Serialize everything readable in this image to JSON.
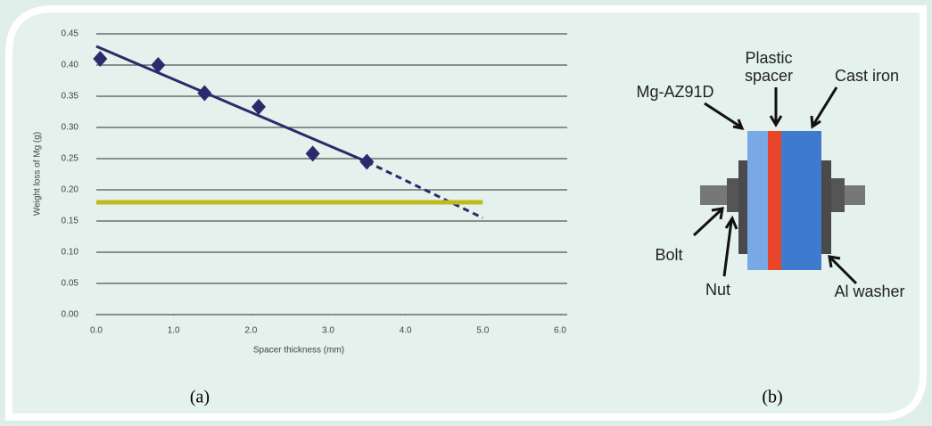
{
  "chart_data": {
    "type": "scatter",
    "xlabel": "Spacer thickness (mm)",
    "ylabel": "Weight loss of Mg (g)",
    "xlim": [
      0,
      6
    ],
    "ylim": [
      0,
      0.45
    ],
    "xticks": [
      {
        "value": 0,
        "label": "0.0"
      },
      {
        "value": 1,
        "label": "1.0"
      },
      {
        "value": 2,
        "label": "2.0"
      },
      {
        "value": 3,
        "label": "3.0"
      },
      {
        "value": 4,
        "label": "4.0"
      },
      {
        "value": 5,
        "label": "5.0"
      },
      {
        "value": 6,
        "label": "6.0"
      }
    ],
    "yticks": [
      {
        "value": 0,
        "label": "0.00"
      },
      {
        "value": 0.05,
        "label": "0.05"
      },
      {
        "value": 0.1,
        "label": "0.10"
      },
      {
        "value": 0.15,
        "label": "0.15"
      },
      {
        "value": 0.2,
        "label": "0.20"
      },
      {
        "value": 0.25,
        "label": "0.25"
      },
      {
        "value": 0.3,
        "label": "0.30"
      },
      {
        "value": 0.35,
        "label": "0.35"
      },
      {
        "value": 0.4,
        "label": "0.40"
      },
      {
        "value": 0.45,
        "label": "0.45"
      }
    ],
    "grid": true,
    "series": [
      {
        "type": "scatter",
        "color": "#2b2a6b",
        "x": [
          0.05,
          0.8,
          1.4,
          2.1,
          2.8,
          3.5
        ],
        "values": [
          0.41,
          0.4,
          0.355,
          0.333,
          0.258,
          0.245
        ]
      },
      {
        "type": "line",
        "color": "#2b2a6b",
        "x": [
          0,
          3.5
        ],
        "values": [
          0.43,
          0.245
        ]
      },
      {
        "type": "line",
        "color": "#2b2a6b",
        "dashed": true,
        "x": [
          3.5,
          5.0
        ],
        "values": [
          0.245,
          0.155
        ]
      },
      {
        "type": "line",
        "color": "#bcbc1c",
        "x": [
          0,
          5.0
        ],
        "values": [
          0.18,
          0.18
        ]
      }
    ]
  },
  "panels": [
    "(a)",
    "(b)"
  ],
  "diagram": {
    "mg": "Mg-AZ91D",
    "plastic_spacer": [
      "Plastic",
      "spacer"
    ],
    "cast_iron": "Cast iron",
    "bolt": "Bolt",
    "nut": "Nut",
    "washer": "Al washer"
  }
}
